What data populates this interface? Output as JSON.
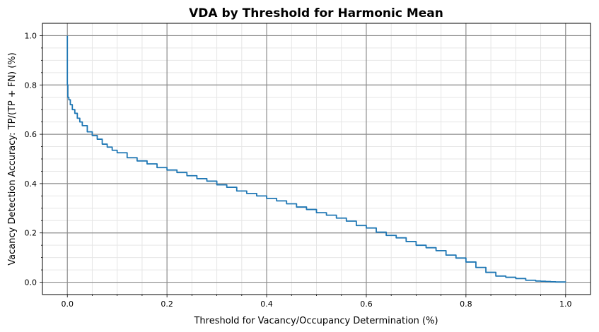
{
  "chart_data": {
    "type": "line",
    "title": "VDA by Threshold  for Harmonic Mean",
    "xlabel": "Threshold for Vacancy/Occupancy Determination (%)",
    "ylabel": "Vacancy Detection Accuracy: TP/(TP + FN) (%)",
    "xlim": [
      -0.05,
      1.05
    ],
    "ylim": [
      -0.05,
      1.05
    ],
    "xticks": [
      0.0,
      0.2,
      0.4,
      0.6,
      0.8,
      1.0
    ],
    "yticks": [
      0.0,
      0.2,
      0.4,
      0.6,
      0.8,
      1.0
    ],
    "xtick_labels": [
      "0.0",
      "0.2",
      "0.4",
      "0.6",
      "0.8",
      "1.0"
    ],
    "ytick_labels": [
      "0.0",
      "0.2",
      "0.4",
      "0.6",
      "0.8",
      "1.0"
    ],
    "grid": {
      "major": true,
      "minor": true
    },
    "series": [
      {
        "color": "#1f77b4",
        "x": [
          0.0,
          0.0,
          0.001,
          0.003,
          0.006,
          0.01,
          0.015,
          0.02,
          0.025,
          0.03,
          0.04,
          0.05,
          0.06,
          0.07,
          0.08,
          0.09,
          0.1,
          0.12,
          0.14,
          0.16,
          0.18,
          0.2,
          0.22,
          0.24,
          0.26,
          0.28,
          0.3,
          0.32,
          0.34,
          0.36,
          0.38,
          0.4,
          0.42,
          0.44,
          0.46,
          0.48,
          0.5,
          0.52,
          0.54,
          0.56,
          0.58,
          0.6,
          0.62,
          0.64,
          0.66,
          0.68,
          0.7,
          0.72,
          0.74,
          0.76,
          0.78,
          0.8,
          0.82,
          0.84,
          0.86,
          0.88,
          0.9,
          0.92,
          0.94,
          0.95,
          0.96,
          0.97,
          0.98,
          1.0
        ],
        "y": [
          1.0,
          0.8,
          0.75,
          0.74,
          0.72,
          0.7,
          0.685,
          0.665,
          0.65,
          0.635,
          0.61,
          0.595,
          0.58,
          0.56,
          0.548,
          0.535,
          0.525,
          0.505,
          0.492,
          0.48,
          0.465,
          0.455,
          0.445,
          0.432,
          0.42,
          0.41,
          0.395,
          0.385,
          0.37,
          0.36,
          0.35,
          0.34,
          0.33,
          0.318,
          0.305,
          0.295,
          0.282,
          0.272,
          0.26,
          0.248,
          0.23,
          0.22,
          0.203,
          0.19,
          0.18,
          0.165,
          0.15,
          0.14,
          0.128,
          0.11,
          0.098,
          0.082,
          0.06,
          0.04,
          0.025,
          0.02,
          0.015,
          0.008,
          0.005,
          0.004,
          0.003,
          0.002,
          0.001,
          0.0
        ]
      }
    ]
  }
}
